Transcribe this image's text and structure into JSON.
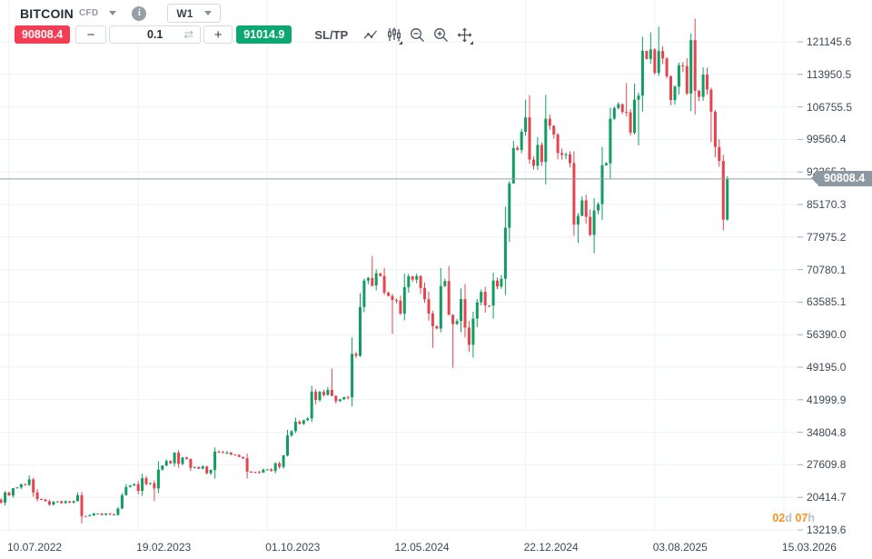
{
  "header": {
    "symbol": "BITCOIN",
    "instrument_type": "CFD",
    "info_glyph": "i",
    "timeframe": "W1"
  },
  "toolbar": {
    "sell_price": "90808.4",
    "decrease_label": "−",
    "volume": "0.1",
    "refresh_glyph": "⇄",
    "increase_label": "+",
    "buy_price": "91014.9",
    "sltp_label": "SL/TP",
    "icons": [
      "line-chart",
      "chart-settings",
      "zoom-out",
      "zoom-in",
      "crosshair"
    ]
  },
  "chart": {
    "current_price_label": "90808.4",
    "countdown": {
      "days": "02",
      "days_unit": "d",
      "hours": "07",
      "hours_unit": "h"
    },
    "colors": {
      "up": "#0f9d62",
      "down": "#e5434e",
      "grid": "#eef2f5",
      "axis_tick": "#a8b1b9",
      "price_line": "#949ea8",
      "marker_bg": "#8d98a2",
      "countdown_accent": "#f7931e"
    }
  },
  "chart_data": {
    "type": "candlestick",
    "symbol": "BITCOIN CFD",
    "timeframe": "W1",
    "current_price": 90808.4,
    "y_axis": {
      "min": 13219.6,
      "max": 121145.6,
      "ticks": [
        "121145.6",
        "113950.5",
        "106755.5",
        "99560.4",
        "92365.3",
        "85170.3",
        "77975.2",
        "70780.1",
        "63585.1",
        "56390.0",
        "49195.0",
        "41999.9",
        "34804.8",
        "27609.8",
        "20414.7",
        "13219.6"
      ]
    },
    "x_ticks": [
      {
        "label": "10.07.2022",
        "week": 0
      },
      {
        "label": "19.02.2023",
        "week": 32
      },
      {
        "label": "01.10.2023",
        "week": 64
      },
      {
        "label": "12.05.2024",
        "week": 96
      },
      {
        "label": "22.12.2024",
        "week": 128
      },
      {
        "label": "03.08.2025",
        "week": 160
      },
      {
        "label": "15.03.2026",
        "week": 192
      }
    ],
    "first_week_offset": -2,
    "weekly_closes": [
      19250,
      21500,
      20850,
      22450,
      22600,
      23300,
      23200,
      24400,
      21500,
      20050,
      19950,
      19550,
      18800,
      19400,
      19550,
      19150,
      19550,
      19200,
      19550,
      20900,
      16300,
      16250,
      16450,
      16850,
      16850,
      16550,
      16850,
      16650,
      16550,
      17950,
      20900,
      22700,
      23000,
      23350,
      21850,
      24650,
      23350,
      23550,
      22400,
      26550,
      27450,
      28450,
      27950,
      30300,
      27800,
      29250,
      28900,
      26950,
      27150,
      26750,
      27250,
      25750,
      26500,
      30550,
      30400,
      30300,
      30350,
      29900,
      29800,
      29350,
      29050,
      26100,
      26050,
      26000,
      25900,
      26550,
      26600,
      26250,
      27950,
      27150,
      29700,
      34100,
      35050,
      37150,
      36650,
      37450,
      37850,
      43800,
      41950,
      43750,
      43050,
      44200,
      42850,
      41700,
      42100,
      42600,
      42550,
      52150,
      51700,
      62500,
      68350,
      68950,
      67250,
      69950,
      69350,
      65700,
      64950,
      64050,
      63900,
      61050,
      66900,
      69300,
      68550,
      69350,
      66700,
      64250,
      61050,
      58250,
      57750,
      67150,
      68250,
      60750,
      58750,
      59400,
      64250,
      57950,
      54150,
      59950,
      63550,
      65850,
      62850,
      62800,
      68350,
      67050,
      68750,
      80050,
      89850,
      97700,
      97250,
      101250,
      104450,
      95100,
      93750,
      98350,
      94600,
      104150,
      102600,
      100650,
      96550,
      96150,
      96250,
      94350,
      80750,
      82650,
      86100,
      82450,
      78450,
      83850,
      85250,
      93850,
      94300,
      104150,
      106500,
      107350,
      105650,
      105550,
      101050,
      108350,
      109250,
      119150,
      117350,
      119450,
      114250,
      119100,
      117450,
      113500,
      108250,
      111250,
      115950,
      115750,
      109700,
      121500,
      110300,
      109000,
      113900,
      110600,
      105700,
      97900,
      94800,
      81830,
      90808.4
    ],
    "wick_overrides": {
      "5": {
        "high": 25250
      },
      "17": {
        "high": 21500
      },
      "18": {
        "low": 14600
      },
      "36": {
        "low": 19600
      },
      "51": {
        "high": 31450
      },
      "80": {
        "high": 48900
      },
      "90": {
        "high": 73780
      },
      "95": {
        "low": 56550
      },
      "105": {
        "low": 53450
      },
      "110": {
        "low": 49050
      },
      "114": {
        "low": 52550
      },
      "128": {
        "high": 108350
      },
      "133": {
        "high": 109400
      },
      "140": {
        "low": 78250
      },
      "141": {
        "low": 76650
      },
      "145": {
        "low": 74420
      },
      "153": {
        "high": 112050
      },
      "156": {
        "low": 98250
      },
      "157": {
        "high": 122250
      },
      "159": {
        "high": 123250
      },
      "161": {
        "high": 124520
      },
      "169": {
        "high": 123000
      },
      "170": {
        "high": 126250
      },
      "174": {
        "low": 98950
      },
      "177": {
        "low": 79420,
        "high": 96150
      },
      "178": {
        "high": 91450,
        "low": 81600
      }
    }
  }
}
